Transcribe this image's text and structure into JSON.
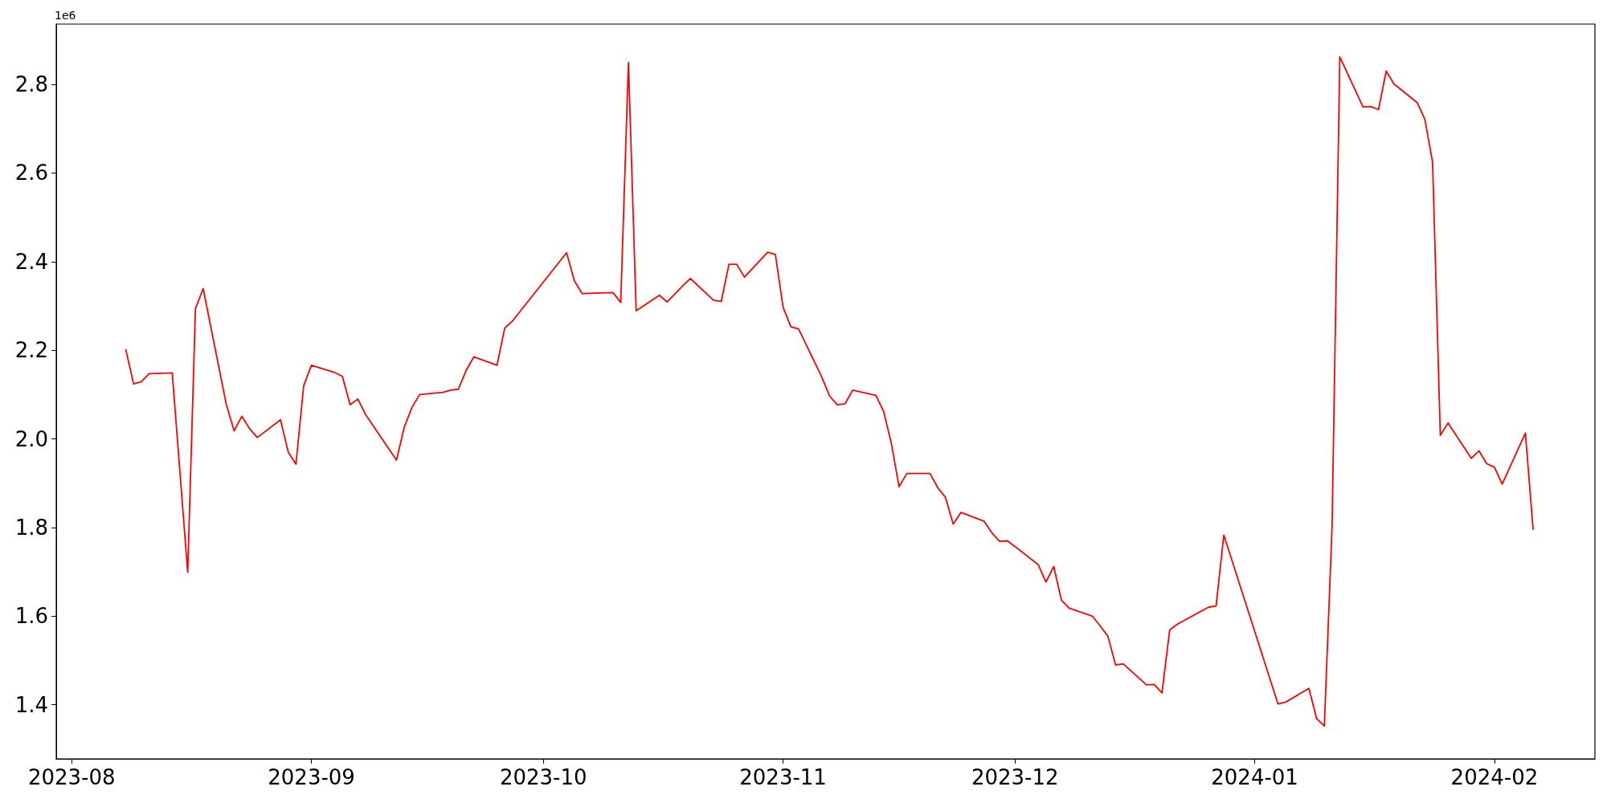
{
  "chart_data": {
    "type": "line",
    "annotations": [
      "1e6"
    ],
    "x": [
      "2023-08-08",
      "2023-08-09",
      "2023-08-10",
      "2023-08-11",
      "2023-08-14",
      "2023-08-16",
      "2023-08-17",
      "2023-08-18",
      "2023-08-21",
      "2023-08-22",
      "2023-08-23",
      "2023-08-24",
      "2023-08-25",
      "2023-08-28",
      "2023-08-29",
      "2023-08-30",
      "2023-08-31",
      "2023-09-01",
      "2023-09-04",
      "2023-09-05",
      "2023-09-06",
      "2023-09-07",
      "2023-09-08",
      "2023-09-12",
      "2023-09-13",
      "2023-09-14",
      "2023-09-15",
      "2023-09-18",
      "2023-09-19",
      "2023-09-20",
      "2023-09-21",
      "2023-09-22",
      "2023-09-25",
      "2023-09-26",
      "2023-09-27",
      "2023-10-04",
      "2023-10-05",
      "2023-10-06",
      "2023-10-10",
      "2023-10-11",
      "2023-10-12",
      "2023-10-13",
      "2023-10-16",
      "2023-10-17",
      "2023-10-18",
      "2023-10-19",
      "2023-10-20",
      "2023-10-23",
      "2023-10-24",
      "2023-10-25",
      "2023-10-26",
      "2023-10-27",
      "2023-10-30",
      "2023-10-31",
      "2023-11-01",
      "2023-11-02",
      "2023-11-03",
      "2023-11-06",
      "2023-11-07",
      "2023-11-08",
      "2023-11-09",
      "2023-11-10",
      "2023-11-13",
      "2023-11-14",
      "2023-11-15",
      "2023-11-16",
      "2023-11-17",
      "2023-11-20",
      "2023-11-21",
      "2023-11-22",
      "2023-11-23",
      "2023-11-24",
      "2023-11-27",
      "2023-11-28",
      "2023-11-29",
      "2023-11-30",
      "2023-12-01",
      "2023-12-04",
      "2023-12-05",
      "2023-12-06",
      "2023-12-07",
      "2023-12-08",
      "2023-12-11",
      "2023-12-12",
      "2023-12-13",
      "2023-12-14",
      "2023-12-15",
      "2023-12-18",
      "2023-12-19",
      "2023-12-20",
      "2023-12-21",
      "2023-12-22",
      "2023-12-26",
      "2023-12-27",
      "2023-12-28",
      "2024-01-04",
      "2024-01-05",
      "2024-01-08",
      "2024-01-09",
      "2024-01-10",
      "2024-01-11",
      "2024-01-12",
      "2024-01-15",
      "2024-01-16",
      "2024-01-17",
      "2024-01-18",
      "2024-01-19",
      "2024-01-22",
      "2024-01-23",
      "2024-01-24",
      "2024-01-25",
      "2024-01-26",
      "2024-01-29",
      "2024-01-30",
      "2024-01-31",
      "2024-02-01",
      "2024-02-02",
      "2024-02-05",
      "2024-02-06"
    ],
    "series": [
      {
        "color": "#ff0000",
        "values": [
          2.201,
          2.124,
          2.129,
          2.147,
          2.149,
          1.699,
          2.294,
          2.339,
          2.077,
          2.018,
          2.051,
          2.023,
          2.003,
          2.043,
          1.97,
          1.943,
          2.12,
          2.166,
          2.15,
          2.141,
          2.077,
          2.09,
          2.055,
          1.952,
          2.026,
          2.071,
          2.1,
          2.105,
          2.11,
          2.112,
          2.154,
          2.185,
          2.166,
          2.25,
          2.266,
          2.42,
          2.357,
          2.328,
          2.33,
          2.308,
          2.849,
          2.289,
          2.324,
          2.309,
          2.327,
          2.345,
          2.362,
          2.313,
          2.31,
          2.394,
          2.394,
          2.365,
          2.421,
          2.416,
          2.297,
          2.253,
          2.248,
          2.14,
          2.097,
          2.077,
          2.079,
          2.11,
          2.098,
          2.062,
          1.99,
          1.892,
          1.922,
          1.922,
          1.89,
          1.868,
          1.808,
          1.834,
          1.814,
          1.788,
          1.769,
          1.77,
          1.757,
          1.716,
          1.677,
          1.712,
          1.636,
          1.618,
          1.6,
          1.578,
          1.555,
          1.49,
          1.492,
          1.445,
          1.446,
          1.427,
          1.569,
          1.582,
          1.62,
          1.623,
          1.783,
          1.402,
          1.406,
          1.437,
          1.369,
          1.352,
          1.802,
          2.862,
          2.749,
          2.75,
          2.743,
          2.83,
          2.801,
          2.759,
          2.721,
          2.624,
          2.008,
          2.036,
          1.956,
          1.973,
          1.944,
          1.936,
          1.898,
          2.013,
          1.796
        ]
      }
    ],
    "xlim": [
      "2023-07-30",
      "2024-02-14"
    ],
    "xticks": [
      {
        "value": "2023-08-01",
        "label": "2023-08"
      },
      {
        "value": "2023-09-01",
        "label": "2023-09"
      },
      {
        "value": "2023-10-01",
        "label": "2023-10"
      },
      {
        "value": "2023-11-01",
        "label": "2023-11"
      },
      {
        "value": "2023-12-01",
        "label": "2023-12"
      },
      {
        "value": "2024-01-01",
        "label": "2024-01"
      },
      {
        "value": "2024-02-01",
        "label": "2024-02"
      }
    ],
    "ylim": [
      1.278,
      2.936
    ],
    "yticks": [
      1.4,
      1.6,
      1.8,
      {
        "value": 2,
        "label": "2.0"
      },
      2.2,
      2.4,
      2.6,
      2.8
    ],
    "marker": "none",
    "line_style": "solid"
  }
}
